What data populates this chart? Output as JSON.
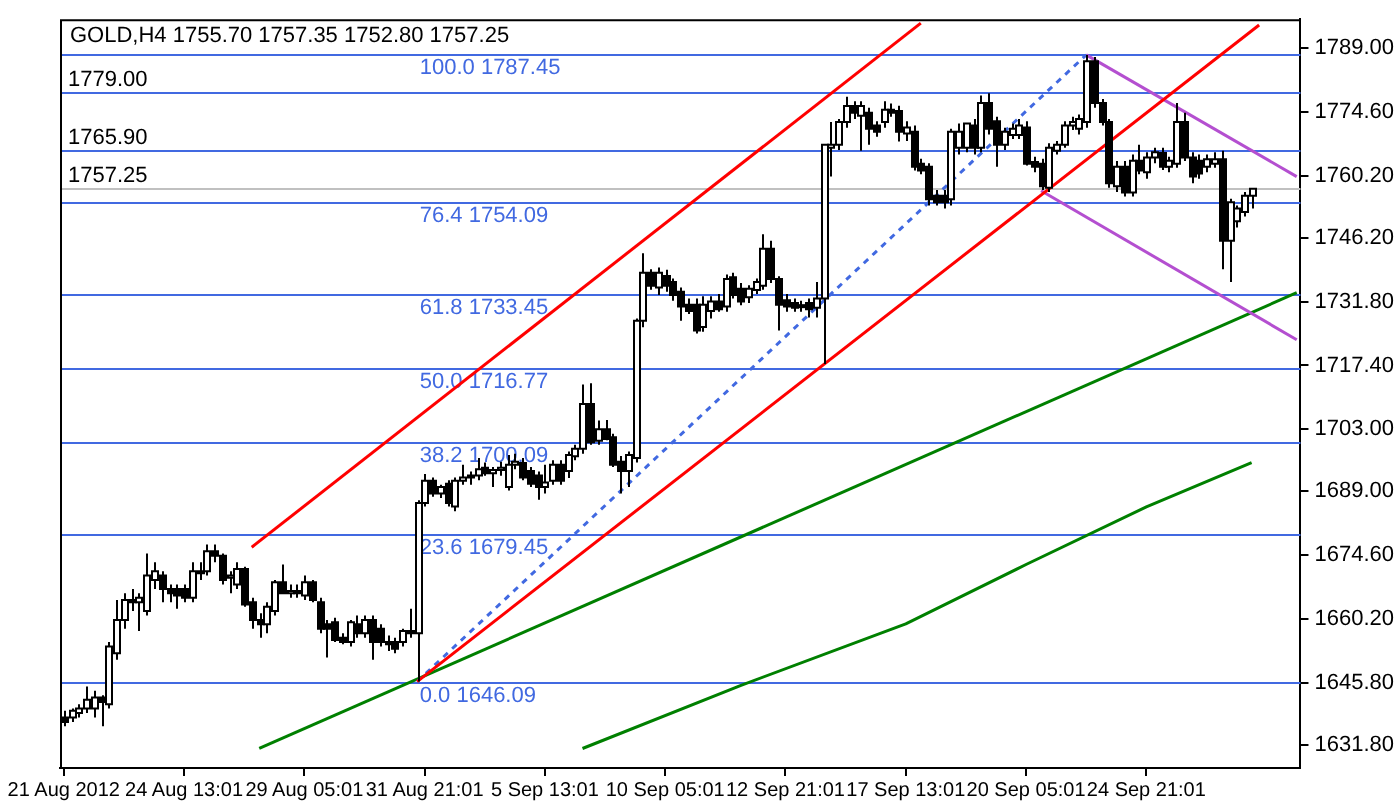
{
  "chart_data": {
    "type": "candlestick",
    "title": "GOLD,H4 1755.70 1757.35 1752.80 1757.25",
    "color": "#000000",
    "marker": "none",
    "colors": [
      "#000000",
      "#ffffff",
      "#ffffff",
      "#ffffff",
      "#ffffff",
      "#000000",
      "#ffffff",
      "#ffffff",
      "#ffffff",
      "#000000",
      "#ffffff",
      "#ffffff",
      "#ffffff",
      "#000000",
      "#000000",
      "#000000",
      "#000000",
      "#ffffff",
      "#000000",
      "#ffffff",
      "#000000",
      "#000000",
      "#ffffff",
      "#ffffff",
      "#000000",
      "#000000",
      "#000000",
      "#ffffff",
      "#ffffff",
      "#000000",
      "#ffffff",
      "#000000",
      "#ffffff",
      "#000000",
      "#000000",
      "#000000",
      "#000000",
      "#000000",
      "#ffffff",
      "#000000",
      "#ffffff",
      "#000000",
      "#000000",
      "#000000",
      "#000000",
      "#ffffff",
      "#000000",
      "#ffffff",
      "#ffffff",
      "#000000",
      "#ffffff",
      "#000000",
      "#ffffff",
      "#ffffff",
      "#ffffff",
      "#ffffff",
      "#000000",
      "#ffffff",
      "#ffffff",
      "#ffffff",
      "#ffffff",
      "#000000",
      "#000000",
      "#000000",
      "#ffffff",
      "#ffffff",
      "#000000",
      "#ffffff",
      "#ffffff",
      "#ffffff",
      "#000000",
      "#ffffff",
      "#000000",
      "#000000",
      "#000000",
      "#ffffff",
      "#ffffff",
      "#ffffff",
      "#000000",
      "#ffffff",
      "#000000",
      "#000000",
      "#000000",
      "#000000",
      "#000000",
      "#ffffff",
      "#ffffff",
      "#000000",
      "#ffffff",
      "#000000",
      "#000000",
      "#ffffff",
      "#ffffff",
      "#ffffff",
      "#000000",
      "#000000",
      "#000000",
      "#000000",
      "#ffffff",
      "#000000",
      "#ffffff",
      "#ffffff",
      "#ffffff",
      "#ffffff",
      "#ffffff",
      "#000000",
      "#ffffff",
      "#000000",
      "#000000",
      "#ffffff",
      "#000000",
      "#000000",
      "#ffffff",
      "#000000",
      "#000000",
      "#000000",
      "#000000",
      "#000000",
      "#ffffff",
      "#ffffff",
      "#ffffff",
      "#000000",
      "#ffffff",
      "#000000",
      "#000000",
      "#ffffff",
      "#ffffff",
      "#ffffff",
      "#000000",
      "#000000",
      "#000000",
      "#ffffff",
      "#ffffff",
      "#ffffff",
      "#ffffff",
      "#ffffff",
      "#ffffff",
      "#000000",
      "#000000",
      "#000000",
      "#ffffff",
      "#000000",
      "#ffffff",
      "#000000",
      "#ffffff",
      "#ffffff",
      "#000000",
      "#ffffff",
      "#ffffff",
      "#000000",
      "#000000",
      "#000000",
      "#ffffff",
      "#ffffff",
      "#000000",
      "#ffffff",
      "#ffffff",
      "#ffffff",
      "#ffffff",
      null,
      null,
      null,
      null,
      null,
      null
    ],
    "categories": [
      "21 Aug 2012",
      null,
      null,
      null,
      null,
      null,
      null,
      null,
      null,
      null,
      null,
      null,
      null,
      null,
      null,
      null,
      "24 Aug 13:01",
      null,
      null,
      null,
      null,
      null,
      null,
      null,
      null,
      null,
      null,
      null,
      null,
      null,
      null,
      null,
      "29 Aug 05:01",
      null,
      null,
      null,
      null,
      null,
      null,
      null,
      null,
      null,
      null,
      null,
      null,
      null,
      null,
      null,
      "31 Aug 21:01",
      null,
      null,
      null,
      null,
      null,
      null,
      null,
      null,
      null,
      null,
      null,
      null,
      null,
      null,
      null,
      "5 Sep 13:01",
      null,
      null,
      null,
      null,
      null,
      null,
      null,
      null,
      null,
      null,
      null,
      null,
      null,
      null,
      null,
      "10 Sep 05:01",
      null,
      null,
      null,
      null,
      null,
      null,
      null,
      null,
      null,
      null,
      null,
      null,
      null,
      null,
      null,
      "12 Sep 21:01",
      null,
      null,
      null,
      null,
      null,
      null,
      null,
      null,
      null,
      null,
      null,
      null,
      null,
      null,
      null,
      "17 Sep 13:01",
      null,
      null,
      null,
      null,
      null,
      null,
      null,
      null,
      null,
      null,
      null,
      null,
      null,
      null,
      null,
      "20 Sep 05:01",
      null,
      null,
      null,
      null,
      null,
      null,
      null,
      null,
      null,
      null,
      null,
      null,
      null,
      null,
      null,
      "24 Sep 21:01",
      null,
      null,
      null,
      null,
      null,
      null,
      null,
      null,
      null,
      null,
      null,
      null,
      null,
      null,
      null,
      null,
      null,
      null,
      null,
      null
    ],
    "ohlc": [
      [
        1638,
        1639.5,
        1636,
        1637
      ],
      [
        1638,
        1640,
        1637,
        1639.5
      ],
      [
        1639,
        1641,
        1638,
        1640
      ],
      [
        1640,
        1645,
        1639,
        1642
      ],
      [
        1640,
        1644,
        1638,
        1642.5
      ],
      [
        1642.5,
        1643,
        1636,
        1641.5
      ],
      [
        1641,
        1655,
        1640,
        1654
      ],
      [
        1652.5,
        1664.5,
        1651,
        1660
      ],
      [
        1660,
        1666,
        1658,
        1664.5
      ],
      [
        1664.5,
        1667,
        1662,
        1664
      ],
      [
        1664,
        1666,
        1657.5,
        1665
      ],
      [
        1662,
        1675,
        1661,
        1670
      ],
      [
        1669,
        1673,
        1667,
        1671
      ],
      [
        1670,
        1671,
        1664,
        1667
      ],
      [
        1667,
        1668,
        1664,
        1666
      ],
      [
        1667,
        1668,
        1662.5,
        1665.5
      ],
      [
        1667,
        1668,
        1664,
        1665
      ],
      [
        1665,
        1673,
        1664,
        1671
      ],
      [
        1671,
        1673,
        1669,
        1670.5
      ],
      [
        1671,
        1677,
        1670,
        1675.5
      ],
      [
        1675.5,
        1677,
        1673,
        1674.5
      ],
      [
        1674.5,
        1675,
        1668,
        1669
      ],
      [
        1669.5,
        1671,
        1666,
        1670
      ],
      [
        1668,
        1673,
        1667,
        1671.5
      ],
      [
        1671.5,
        1672,
        1663,
        1663.5
      ],
      [
        1664,
        1665,
        1658,
        1660
      ],
      [
        1660,
        1661.5,
        1656,
        1659
      ],
      [
        1659,
        1664,
        1657,
        1663
      ],
      [
        1662,
        1669,
        1661,
        1668.5
      ],
      [
        1668.5,
        1672.5,
        1666,
        1666
      ],
      [
        1666,
        1668,
        1665,
        1666.5
      ],
      [
        1666.5,
        1668,
        1665,
        1666
      ],
      [
        1665.5,
        1670,
        1664.5,
        1668.5
      ],
      [
        1668.5,
        1669,
        1664,
        1664.5
      ],
      [
        1664,
        1665,
        1657,
        1658
      ],
      [
        1659,
        1660,
        1651.5,
        1658
      ],
      [
        1659.5,
        1660.5,
        1655,
        1655.5
      ],
      [
        1656,
        1657,
        1654.5,
        1655
      ],
      [
        1655,
        1660,
        1654,
        1659.5
      ],
      [
        1659,
        1661,
        1656,
        1657
      ],
      [
        1657,
        1661,
        1656,
        1660
      ],
      [
        1660,
        1661,
        1651,
        1655
      ],
      [
        1658,
        1659,
        1654,
        1655
      ],
      [
        1655,
        1656.5,
        1653,
        1654.5
      ],
      [
        1655,
        1656,
        1652.5,
        1653.5
      ],
      [
        1655,
        1658,
        1654,
        1657.5
      ],
      [
        1657.5,
        1662.5,
        1656,
        1657
      ],
      [
        1657,
        1687,
        1646.09,
        1686.4
      ],
      [
        1686.4,
        1692.9,
        1685.6,
        1691.4
      ],
      [
        1691.4,
        1692.1,
        1687.8,
        1688.5
      ],
      [
        1688.5,
        1690.5,
        1687.5,
        1690
      ],
      [
        1690.7,
        1691.5,
        1685.6,
        1686.4
      ],
      [
        1685.6,
        1692.1,
        1684.5,
        1691.4
      ],
      [
        1691.4,
        1695,
        1690.5,
        1692.1
      ],
      [
        1692.1,
        1693.5,
        1690.5,
        1692.6
      ],
      [
        1692.6,
        1696.5,
        1691.5,
        1694
      ],
      [
        1694.3,
        1695.5,
        1692.5,
        1693.1
      ],
      [
        1693.1,
        1694.5,
        1690,
        1693.8
      ],
      [
        1693.8,
        1695.7,
        1692.5,
        1694.3
      ],
      [
        1690,
        1697.2,
        1689.2,
        1695
      ],
      [
        1695,
        1697.5,
        1694,
        1695.7
      ],
      [
        1695.4,
        1696.5,
        1691.5,
        1692.1
      ],
      [
        1693.6,
        1694.5,
        1690,
        1690.7
      ],
      [
        1692.6,
        1693.5,
        1687.1,
        1690
      ],
      [
        1690,
        1695,
        1688.5,
        1691
      ],
      [
        1691.4,
        1696,
        1690.5,
        1695
      ],
      [
        1695,
        1696,
        1690.5,
        1691.4
      ],
      [
        1693.6,
        1698,
        1692,
        1697.2
      ],
      [
        1696.9,
        1699.5,
        1696,
        1698.6
      ],
      [
        1698.6,
        1713.1,
        1697.5,
        1708.7
      ],
      [
        1708.7,
        1713.4,
        1699.5,
        1700.1
      ],
      [
        1700.4,
        1705,
        1699.5,
        1703
      ],
      [
        1703,
        1705.1,
        1700.5,
        1700.8
      ],
      [
        1701.2,
        1702,
        1694.5,
        1695
      ],
      [
        1695.7,
        1697,
        1688.5,
        1693.6
      ],
      [
        1693.6,
        1698,
        1690,
        1697.2
      ],
      [
        1696.5,
        1728,
        1695.5,
        1727.5
      ],
      [
        1727.5,
        1742.7,
        1726,
        1738.3
      ],
      [
        1738.3,
        1739.1,
        1734.5,
        1735.4
      ],
      [
        1735,
        1739.5,
        1733.3,
        1738.3
      ],
      [
        1737.6,
        1739,
        1734,
        1735.4
      ],
      [
        1736.2,
        1737,
        1732,
        1733.3
      ],
      [
        1734,
        1735,
        1727.5,
        1730.7
      ],
      [
        1731.1,
        1732.5,
        1729,
        1729.7
      ],
      [
        1731.1,
        1732.5,
        1724.6,
        1725.3
      ],
      [
        1726.1,
        1733,
        1725,
        1731.1
      ],
      [
        1729.7,
        1733,
        1728,
        1731.8
      ],
      [
        1731.8,
        1733.5,
        1729.5,
        1730.1
      ],
      [
        1730.7,
        1737.9,
        1729.5,
        1736.9
      ],
      [
        1737.3,
        1738.3,
        1732.5,
        1733.3
      ],
      [
        1734.7,
        1736,
        1731,
        1731.8
      ],
      [
        1732.8,
        1735.5,
        1731.5,
        1734.7
      ],
      [
        1734.4,
        1737,
        1733.5,
        1736.2
      ],
      [
        1735.4,
        1747,
        1734.5,
        1743.7
      ],
      [
        1743.7,
        1745.5,
        1736,
        1736.9
      ],
      [
        1736.9,
        1737.5,
        1725.3,
        1731.1
      ],
      [
        1732.1,
        1733.5,
        1729.5,
        1730.7
      ],
      [
        1731.5,
        1732.5,
        1729.5,
        1730.4
      ],
      [
        1730.7,
        1732,
        1729.5,
        1731
      ],
      [
        1731.5,
        1732.5,
        1728.2,
        1730.1
      ],
      [
        1730.4,
        1736.2,
        1728.2,
        1732.5
      ],
      [
        1732.5,
        1767.2,
        1717.7,
        1767.2
      ],
      [
        1766.5,
        1772.3,
        1760,
        1767.2
      ],
      [
        1767.2,
        1773,
        1766,
        1772.3
      ],
      [
        1772.3,
        1778,
        1771,
        1775.9
      ],
      [
        1775.9,
        1777,
        1773,
        1774.4
      ],
      [
        1773.7,
        1777,
        1765.8,
        1775.9
      ],
      [
        1774.4,
        1775.5,
        1767.2,
        1770.8
      ],
      [
        1771.5,
        1772.5,
        1769,
        1770.1
      ],
      [
        1772.3,
        1777,
        1771,
        1775.1
      ],
      [
        1775.1,
        1776.5,
        1773.5,
        1774.4
      ],
      [
        1774.8,
        1776,
        1767.9,
        1770.1
      ],
      [
        1769.7,
        1772.5,
        1768,
        1771.1
      ],
      [
        1770.1,
        1771.5,
        1761.4,
        1762.2
      ],
      [
        1762.9,
        1764,
        1760.5,
        1761.4
      ],
      [
        1762.2,
        1763,
        1753.5,
        1754.9
      ],
      [
        1755.7,
        1757,
        1753.5,
        1754.2
      ],
      [
        1755.7,
        1757,
        1752.8,
        1754.2
      ],
      [
        1754.9,
        1770.8,
        1753.5,
        1770.1
      ],
      [
        1766.5,
        1772,
        1765,
        1770.1
      ],
      [
        1766.5,
        1772,
        1765.5,
        1772
      ],
      [
        1771.5,
        1773,
        1765,
        1766.5
      ],
      [
        1766.5,
        1778.3,
        1765.5,
        1776.6
      ],
      [
        1776.6,
        1778.8,
        1769.5,
        1770.8
      ],
      [
        1772.5,
        1773.5,
        1762.2,
        1767.2
      ],
      [
        1767.2,
        1771,
        1766,
        1770.1
      ],
      [
        1769.4,
        1772,
        1768.5,
        1770.8
      ],
      [
        1769.4,
        1773,
        1768.5,
        1771.5
      ],
      [
        1771.1,
        1772.5,
        1762.5,
        1762.9
      ],
      [
        1763.3,
        1764.5,
        1761,
        1762.2
      ],
      [
        1762.9,
        1764,
        1757,
        1757.8
      ],
      [
        1757.5,
        1767.5,
        1756.5,
        1766.5
      ],
      [
        1765.8,
        1768,
        1765,
        1767.2
      ],
      [
        1767.2,
        1772.5,
        1766.5,
        1771.5
      ],
      [
        1771.5,
        1773.5,
        1770.5,
        1772.3
      ],
      [
        1770.8,
        1774,
        1769.5,
        1773
      ],
      [
        1772.3,
        1787.45,
        1771,
        1786
      ],
      [
        1786,
        1787,
        1775.5,
        1776.6
      ],
      [
        1776.6,
        1777.5,
        1771.5,
        1772.3
      ],
      [
        1772.3,
        1773,
        1757.5,
        1758.5
      ],
      [
        1757.8,
        1763.5,
        1756.5,
        1762.2
      ],
      [
        1762.2,
        1763.5,
        1755.5,
        1756.4
      ],
      [
        1756.4,
        1765,
        1755.5,
        1763.6
      ],
      [
        1763.6,
        1767.2,
        1760.5,
        1761.4
      ],
      [
        1761,
        1765.5,
        1759.5,
        1764.3
      ],
      [
        1764.3,
        1766.5,
        1763,
        1765.5
      ],
      [
        1765.3,
        1766.5,
        1761.5,
        1762.2
      ],
      [
        1762.2,
        1764.5,
        1761,
        1763.6
      ],
      [
        1762.9,
        1776.6,
        1762,
        1772.3
      ],
      [
        1772.3,
        1774.4,
        1763.5,
        1764.3
      ],
      [
        1764.3,
        1765.5,
        1758.5,
        1760
      ],
      [
        1763.6,
        1765,
        1759.5,
        1760.7
      ],
      [
        1762.2,
        1765,
        1761,
        1763.9
      ],
      [
        1762.9,
        1765.5,
        1762,
        1763.9
      ],
      [
        1763.9,
        1765.8,
        1739.1,
        1745.5
      ],
      [
        1745.5,
        1755,
        1736.2,
        1754.2
      ],
      [
        1749.9,
        1753.5,
        1748.5,
        1752.8
      ],
      [
        1752,
        1756.5,
        1751,
        1755.7
      ],
      [
        1755.7,
        1757.35,
        1752.8,
        1757.25
      ],
      null,
      null,
      null,
      null,
      null,
      null
    ],
    "series": [
      {
        "type": "line",
        "color": "#ff0000",
        "values": [
          null,
          null,
          null,
          null,
          null,
          null,
          null,
          null,
          null,
          null,
          null,
          null,
          null,
          null,
          null,
          null,
          null,
          null,
          null,
          null,
          null,
          null,
          null,
          null,
          null,
          1676.4,
          null,
          null,
          null,
          null,
          null,
          null,
          null,
          null,
          null,
          null,
          null,
          null,
          null,
          null,
          null,
          null,
          null,
          null,
          null,
          null,
          null,
          null,
          null,
          null,
          null,
          null,
          null,
          null,
          null,
          null,
          null,
          null,
          null,
          null,
          null,
          null,
          null,
          null,
          null,
          null,
          null,
          null,
          null,
          null,
          null,
          null,
          null,
          null,
          null,
          null,
          null,
          null,
          null,
          null,
          null,
          null,
          null,
          null,
          null,
          null,
          null,
          null,
          null,
          null,
          null,
          null,
          null,
          null,
          null,
          null,
          null,
          null,
          null,
          null,
          null,
          null,
          null,
          null,
          null,
          null,
          null,
          null,
          null,
          null,
          null,
          null,
          null,
          null,
          1794.6,
          null,
          null,
          null,
          null,
          null,
          null,
          null,
          null,
          null,
          null,
          null,
          null,
          null,
          null,
          null,
          null,
          null,
          null,
          null,
          null,
          null,
          null,
          null,
          null,
          null,
          null,
          null,
          null,
          null,
          null,
          null,
          null,
          null,
          null,
          null,
          null,
          null,
          null,
          null,
          null,
          null,
          null,
          null,
          null,
          null,
          null,
          null,
          null,
          null,
          null
        ]
      },
      {
        "type": "line",
        "color": "#ff0000",
        "values": [
          null,
          null,
          null,
          null,
          null,
          null,
          null,
          null,
          null,
          null,
          null,
          null,
          null,
          null,
          null,
          null,
          null,
          null,
          null,
          null,
          null,
          null,
          null,
          null,
          null,
          null,
          null,
          null,
          null,
          null,
          null,
          null,
          null,
          null,
          null,
          null,
          null,
          null,
          null,
          null,
          null,
          null,
          null,
          null,
          null,
          null,
          null,
          1646.09,
          null,
          null,
          null,
          null,
          null,
          null,
          null,
          null,
          null,
          null,
          null,
          null,
          null,
          null,
          null,
          null,
          null,
          null,
          null,
          null,
          null,
          null,
          null,
          null,
          null,
          null,
          null,
          null,
          null,
          null,
          null,
          null,
          null,
          null,
          null,
          null,
          null,
          null,
          null,
          null,
          null,
          null,
          null,
          null,
          null,
          null,
          null,
          null,
          null,
          null,
          null,
          null,
          null,
          null,
          null,
          null,
          null,
          null,
          null,
          null,
          null,
          null,
          null,
          null,
          null,
          null,
          null,
          null,
          null,
          null,
          null,
          null,
          null,
          null,
          null,
          null,
          null,
          null,
          null,
          null,
          null,
          null,
          null,
          null,
          null,
          null,
          null,
          null,
          null,
          null,
          null,
          null,
          null,
          null,
          null,
          null,
          null,
          null,
          null,
          null,
          null,
          null,
          null,
          null,
          null,
          null,
          null,
          null,
          null,
          null,
          null,
          1794.2,
          null,
          null,
          null,
          null,
          null
        ]
      },
      {
        "type": "line",
        "color": "#4169e1",
        "line_style": "dashed",
        "values": [
          null,
          null,
          null,
          null,
          null,
          null,
          null,
          null,
          null,
          null,
          null,
          null,
          null,
          null,
          null,
          null,
          null,
          null,
          null,
          null,
          null,
          null,
          null,
          null,
          null,
          null,
          null,
          null,
          null,
          null,
          null,
          null,
          null,
          null,
          null,
          null,
          null,
          null,
          null,
          null,
          null,
          null,
          null,
          null,
          null,
          null,
          null,
          1646.09,
          null,
          null,
          null,
          null,
          null,
          null,
          null,
          null,
          null,
          null,
          null,
          null,
          null,
          null,
          null,
          null,
          null,
          null,
          null,
          null,
          null,
          null,
          null,
          null,
          null,
          null,
          null,
          null,
          null,
          null,
          null,
          null,
          null,
          null,
          null,
          null,
          null,
          null,
          null,
          null,
          null,
          null,
          null,
          null,
          null,
          null,
          null,
          null,
          null,
          null,
          null,
          null,
          null,
          null,
          null,
          null,
          null,
          null,
          null,
          null,
          null,
          null,
          null,
          null,
          null,
          null,
          null,
          null,
          null,
          null,
          null,
          null,
          null,
          null,
          null,
          null,
          null,
          null,
          null,
          null,
          null,
          null,
          null,
          null,
          null,
          null,
          null,
          null,
          1787.45,
          null,
          null,
          null,
          null,
          null,
          null,
          null,
          null,
          null,
          null,
          null,
          null,
          null,
          null,
          null,
          null,
          null,
          null,
          null,
          null,
          null,
          null,
          null,
          null,
          null,
          null,
          null,
          null
        ]
      },
      {
        "type": "line",
        "color": "#b44fd0",
        "values": [
          null,
          null,
          null,
          null,
          null,
          null,
          null,
          null,
          null,
          null,
          null,
          null,
          null,
          null,
          null,
          null,
          null,
          null,
          null,
          null,
          null,
          null,
          null,
          null,
          null,
          null,
          null,
          null,
          null,
          null,
          null,
          null,
          null,
          null,
          null,
          null,
          null,
          null,
          null,
          null,
          null,
          null,
          null,
          null,
          null,
          null,
          null,
          null,
          null,
          null,
          null,
          null,
          null,
          null,
          null,
          null,
          null,
          null,
          null,
          null,
          null,
          null,
          null,
          null,
          null,
          null,
          null,
          null,
          null,
          null,
          null,
          null,
          null,
          null,
          null,
          null,
          null,
          null,
          null,
          null,
          null,
          null,
          null,
          null,
          null,
          null,
          null,
          null,
          null,
          null,
          null,
          null,
          null,
          null,
          null,
          null,
          null,
          null,
          null,
          null,
          null,
          null,
          null,
          null,
          null,
          null,
          null,
          null,
          null,
          null,
          null,
          null,
          null,
          null,
          null,
          null,
          null,
          null,
          null,
          null,
          null,
          null,
          null,
          null,
          null,
          null,
          null,
          null,
          null,
          null,
          null,
          null,
          null,
          null,
          null,
          null,
          1787.45,
          null,
          null,
          null,
          null,
          null,
          null,
          null,
          null,
          null,
          null,
          null,
          null,
          null,
          null,
          null,
          null,
          null,
          null,
          null,
          null,
          null,
          null,
          null,
          null,
          null,
          null,
          null,
          1760.0
        ]
      },
      {
        "type": "line",
        "color": "#b44fd0",
        "values": [
          null,
          null,
          null,
          null,
          null,
          null,
          null,
          null,
          null,
          null,
          null,
          null,
          null,
          null,
          null,
          null,
          null,
          null,
          null,
          null,
          null,
          null,
          null,
          null,
          null,
          null,
          null,
          null,
          null,
          null,
          null,
          null,
          null,
          null,
          null,
          null,
          null,
          null,
          null,
          null,
          null,
          null,
          null,
          null,
          null,
          null,
          null,
          null,
          null,
          null,
          null,
          null,
          null,
          null,
          null,
          null,
          null,
          null,
          null,
          null,
          null,
          null,
          null,
          null,
          null,
          null,
          null,
          null,
          null,
          null,
          null,
          null,
          null,
          null,
          null,
          null,
          null,
          null,
          null,
          null,
          null,
          null,
          null,
          null,
          null,
          null,
          null,
          null,
          null,
          null,
          null,
          null,
          null,
          null,
          null,
          null,
          null,
          null,
          null,
          null,
          null,
          null,
          null,
          null,
          null,
          null,
          null,
          null,
          null,
          null,
          null,
          null,
          null,
          null,
          null,
          null,
          null,
          null,
          null,
          null,
          null,
          null,
          null,
          null,
          null,
          null,
          null,
          null,
          null,
          null,
          1756.8,
          null,
          null,
          null,
          null,
          null,
          null,
          null,
          null,
          null,
          null,
          null,
          null,
          null,
          null,
          null,
          null,
          null,
          null,
          null,
          null,
          null,
          null,
          null,
          null,
          null,
          null,
          null,
          null,
          null,
          null,
          null,
          null,
          null,
          1723.2
        ]
      },
      {
        "type": "line",
        "color": "#008000",
        "values": [
          null,
          null,
          null,
          null,
          null,
          null,
          null,
          null,
          null,
          null,
          null,
          null,
          null,
          null,
          null,
          null,
          null,
          null,
          null,
          null,
          null,
          null,
          null,
          null,
          null,
          null,
          1631.0,
          null,
          null,
          null,
          null,
          null,
          null,
          null,
          null,
          null,
          null,
          null,
          null,
          null,
          null,
          null,
          null,
          null,
          null,
          null,
          null,
          null,
          null,
          null,
          null,
          null,
          null,
          null,
          null,
          null,
          null,
          null,
          null,
          null,
          null,
          null,
          null,
          null,
          null,
          null,
          null,
          null,
          null,
          null,
          null,
          null,
          null,
          null,
          null,
          null,
          null,
          null,
          null,
          null,
          null,
          null,
          null,
          null,
          null,
          null,
          null,
          null,
          null,
          null,
          null,
          null,
          null,
          null,
          null,
          null,
          null,
          null,
          null,
          null,
          null,
          null,
          null,
          null,
          null,
          null,
          null,
          null,
          null,
          null,
          null,
          null,
          null,
          null,
          null,
          null,
          null,
          null,
          null,
          null,
          null,
          null,
          null,
          null,
          null,
          null,
          null,
          null,
          null,
          null,
          null,
          null,
          null,
          null,
          null,
          null,
          null,
          null,
          null,
          null,
          null,
          null,
          null,
          null,
          null,
          null,
          null,
          null,
          null,
          null,
          null,
          null,
          null,
          null,
          null,
          null,
          null,
          null,
          null,
          null,
          null,
          null,
          null,
          null,
          1733.8
        ]
      },
      {
        "type": "line",
        "color": "#008000",
        "values": [
          null,
          null,
          null,
          null,
          null,
          null,
          null,
          null,
          null,
          null,
          null,
          null,
          null,
          null,
          null,
          null,
          null,
          null,
          null,
          null,
          null,
          null,
          null,
          null,
          null,
          null,
          null,
          null,
          null,
          null,
          null,
          null,
          null,
          null,
          null,
          null,
          null,
          null,
          null,
          null,
          null,
          null,
          null,
          null,
          null,
          null,
          null,
          null,
          null,
          null,
          null,
          null,
          null,
          null,
          null,
          null,
          null,
          null,
          null,
          null,
          null,
          null,
          null,
          null,
          null,
          null,
          null,
          null,
          null,
          1631.0,
          null,
          null,
          null,
          null,
          null,
          null,
          null,
          null,
          null,
          null,
          null,
          null,
          null,
          null,
          null,
          null,
          null,
          null,
          null,
          null,
          1645.2,
          null,
          null,
          null,
          null,
          null,
          null,
          null,
          null,
          null,
          null,
          null,
          null,
          null,
          null,
          null,
          null,
          null,
          null,
          null,
          null,
          null,
          1659.1,
          null,
          null,
          null,
          null,
          null,
          null,
          null,
          null,
          null,
          null,
          null,
          null,
          null,
          null,
          null,
          1672.5,
          null,
          null,
          null,
          null,
          null,
          null,
          null,
          null,
          null,
          null,
          null,
          null,
          null,
          null,
          null,
          1685.5,
          null,
          null,
          null,
          null,
          null,
          null,
          null,
          null,
          null,
          null,
          null,
          null,
          null,
          1695.5,
          null,
          null,
          null,
          null,
          null,
          null
        ]
      }
    ],
    "ylim": [
      1626.6,
      1795.5
    ],
    "yticks": [
      {
        "value": 1631.8,
        "label": "1631.80"
      },
      {
        "value": 1645.8,
        "label": "1645.80"
      },
      {
        "value": 1660.2,
        "label": "1660.20"
      },
      {
        "value": 1674.6,
        "label": "1674.60"
      },
      {
        "value": 1689,
        "label": "1689.00"
      },
      {
        "value": 1703,
        "label": "1703.00"
      },
      {
        "value": 1717.4,
        "label": "1717.40"
      },
      {
        "value": 1731.8,
        "label": "1731.80"
      },
      {
        "value": 1746.2,
        "label": "1746.20"
      },
      {
        "value": 1760.2,
        "label": "1760.20"
      },
      {
        "value": 1774.6,
        "label": "1774.60"
      },
      {
        "value": 1789,
        "label": "1789.00"
      }
    ],
    "ref_lines": [
      {
        "axis": "y",
        "value": 1779,
        "label": "1779.00",
        "color": "#4169e1"
      },
      {
        "axis": "y",
        "value": 1765.9,
        "label": "1765.90",
        "color": "#4169e1"
      },
      {
        "axis": "y",
        "value": 1757.25,
        "label": "1757.25",
        "color": "#c0c0c0"
      },
      {
        "axis": "y",
        "value": 1787.45,
        "label": "100.0 1787.45",
        "color": "#4169e1"
      },
      {
        "axis": "y",
        "value": 1754.09,
        "label": "76.4 1754.09",
        "color": "#4169e1"
      },
      {
        "axis": "y",
        "value": 1733.45,
        "label": "61.8 1733.45",
        "color": "#4169e1"
      },
      {
        "axis": "y",
        "value": 1716.77,
        "label": "50.0 1716.77",
        "color": "#4169e1"
      },
      {
        "axis": "y",
        "value": 1700.09,
        "label": "38.2 1700.09",
        "color": "#4169e1"
      },
      {
        "axis": "y",
        "value": 1679.45,
        "label": "23.6 1679.45",
        "color": "#4169e1"
      },
      {
        "axis": "y",
        "value": 1646.09,
        "label": "0.0 1646.09",
        "color": "#4169e1"
      }
    ],
    "legend": false
  }
}
